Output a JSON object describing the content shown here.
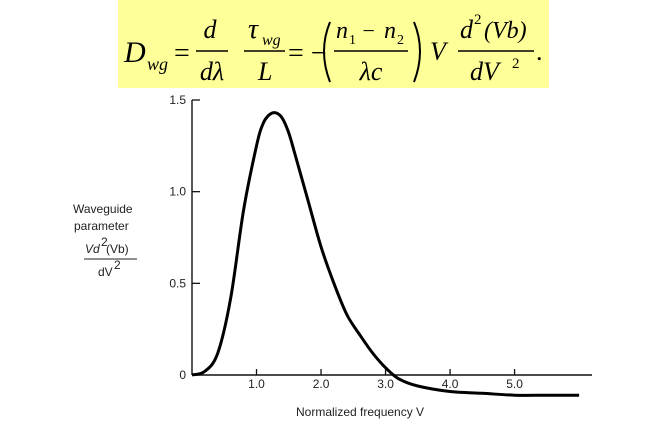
{
  "equation": {
    "lhs": "D",
    "lhs_sub": "wg",
    "eq1": "=",
    "d_num": "d",
    "d_den": "dλ",
    "tau": "τ",
    "tau_sub": "wg",
    "L": "L",
    "eq2": "= −",
    "n1": "n",
    "n1_sub": "1",
    "minus": " − ",
    "n2": "n",
    "n2_sub": "2",
    "lc": "λc",
    "V": "V",
    "d2_num": "d",
    "d2_num_sup": "2",
    "vb": "(Vb)",
    "dV": "dV",
    "dV_sup": "2",
    "period": "."
  },
  "chart_data": {
    "type": "line",
    "xlabel": "Normalized frequency V",
    "ylabel_lines": [
      "Waveguide",
      "parameter"
    ],
    "ylabel_num": "Vd",
    "ylabel_num_sup": "2",
    "ylabel_num_rest": "(Vb)",
    "ylabel_den": "dV",
    "ylabel_den_sup": "2",
    "xlim": [
      0,
      6.2
    ],
    "ylim": [
      0,
      1.5
    ],
    "xticks": [
      1.0,
      2.0,
      3.0,
      4.0,
      5.0
    ],
    "xtick_labels": [
      "1.0",
      "2.0",
      "3.0",
      "4.0",
      "5.0"
    ],
    "yticks": [
      0,
      0.5,
      1.0,
      1.5
    ],
    "ytick_labels": [
      "0",
      "0.5",
      "1.0",
      "1.5"
    ],
    "grid": false,
    "series": [
      {
        "x": [
          0,
          0.2,
          0.4,
          0.6,
          0.8,
          1.0,
          1.1,
          1.2,
          1.3,
          1.4,
          1.5,
          1.6,
          1.8,
          2.0,
          2.2,
          2.4,
          2.6,
          2.8,
          3.0,
          3.2,
          3.5,
          4.0,
          4.5,
          5.0,
          5.5,
          6.0
        ],
        "y": [
          0,
          0.02,
          0.12,
          0.42,
          0.9,
          1.25,
          1.37,
          1.42,
          1.43,
          1.4,
          1.32,
          1.2,
          0.95,
          0.7,
          0.5,
          0.33,
          0.22,
          0.12,
          0.04,
          -0.02,
          -0.06,
          -0.09,
          -0.1,
          -0.11,
          -0.11,
          -0.11
        ]
      }
    ]
  }
}
